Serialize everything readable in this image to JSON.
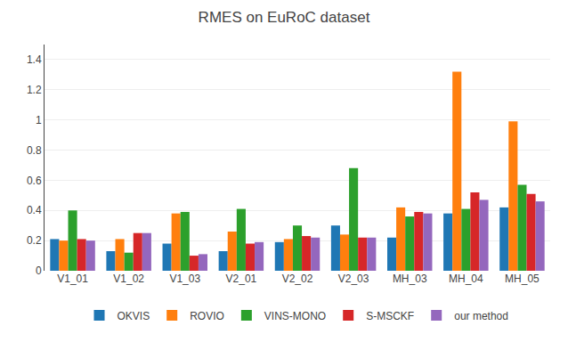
{
  "chart_data": {
    "type": "bar",
    "title": "RMES on EuRoC dataset",
    "categories": [
      "V1_01",
      "V1_02",
      "V1_03",
      "V2_01",
      "V2_02",
      "V2_03",
      "MH_03",
      "MH_04",
      "MH_05"
    ],
    "series": [
      {
        "name": "OKVIS",
        "values": [
          0.21,
          0.13,
          0.18,
          0.13,
          0.19,
          0.3,
          0.22,
          0.38,
          0.42
        ]
      },
      {
        "name": "ROVIO",
        "values": [
          0.2,
          0.21,
          0.38,
          0.26,
          0.21,
          0.24,
          0.42,
          1.32,
          0.99
        ]
      },
      {
        "name": "VINS-MONO",
        "values": [
          0.4,
          0.12,
          0.39,
          0.41,
          0.3,
          0.68,
          0.36,
          0.41,
          0.57
        ]
      },
      {
        "name": "S-MSCKF",
        "values": [
          0.21,
          0.25,
          0.1,
          0.18,
          0.23,
          0.22,
          0.39,
          0.52,
          0.51
        ]
      },
      {
        "name": "our method",
        "values": [
          0.2,
          0.25,
          0.11,
          0.19,
          0.22,
          0.22,
          0.38,
          0.47,
          0.46
        ]
      }
    ],
    "ylim": [
      0,
      1.5
    ],
    "yticks": [
      0,
      0.2,
      0.4,
      0.6,
      0.8,
      1,
      1.2,
      1.4
    ],
    "grid": true,
    "legend": "lower center"
  }
}
